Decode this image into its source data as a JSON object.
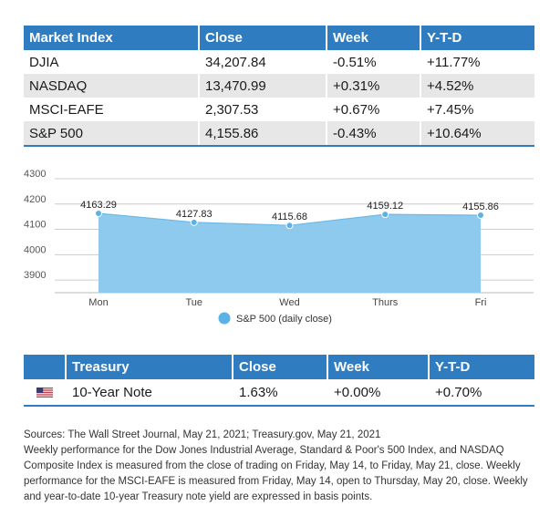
{
  "market_table": {
    "headers": [
      "Market Index",
      "Close",
      "Week",
      "Y-T-D"
    ],
    "rows": [
      [
        "DJIA",
        "34,207.84",
        "-0.51%",
        "+11.77%"
      ],
      [
        "NASDAQ",
        "13,470.99",
        "+0.31%",
        "+4.52%"
      ],
      [
        "MSCI-EAFE",
        "2,307.53",
        "+0.67%",
        "+7.45%"
      ],
      [
        "S&P 500",
        "4,155.86",
        "-0.43%",
        "+10.64%"
      ]
    ]
  },
  "chart_data": {
    "type": "area",
    "categories": [
      "Mon",
      "Tue",
      "Wed",
      "Thurs",
      "Fri"
    ],
    "series": [
      {
        "name": "S&P 500 (daily close)",
        "values": [
          4163.29,
          4127.83,
          4115.68,
          4159.12,
          4155.86
        ],
        "labels": [
          "4163.29",
          "4127.83",
          "4115.68",
          "4159.12",
          "4155.86"
        ]
      }
    ],
    "y_ticks": [
      "4300",
      "4200",
      "4100",
      "4000",
      "3900"
    ],
    "ylim": [
      3850,
      4300
    ],
    "grid": true,
    "legend": "bottom-center",
    "fill_color": "#8ecaee",
    "marker_color": "#5ab2e6",
    "grid_color": "#cccccc"
  },
  "treasury_table": {
    "headers": [
      "Treasury",
      "Close",
      "Week",
      "Y-T-D"
    ],
    "rows": [
      {
        "icon": "us-flag-icon",
        "cells": [
          "10-Year Note",
          "1.63%",
          "+0.00%",
          "+0.70%"
        ]
      }
    ]
  },
  "notes": {
    "sources": "Sources: The Wall Street Journal, May 21, 2021; Treasury.gov, May 21, 2021",
    "text": "Weekly performance for the Dow Jones Industrial Average, Standard & Poor's 500 Index, and NASDAQ Composite Index is measured from the close of trading on Friday, May 14, to Friday, May 21, close. Weekly performance for the MSCI-EAFE is measured from Friday, May 14, open to Thursday, May 20, close. Weekly and year-to-date 10-year Treasury note yield are expressed in basis points."
  },
  "colors": {
    "header_bg": "#2f7cc1",
    "stripe_bg": "#e7e7e7"
  }
}
